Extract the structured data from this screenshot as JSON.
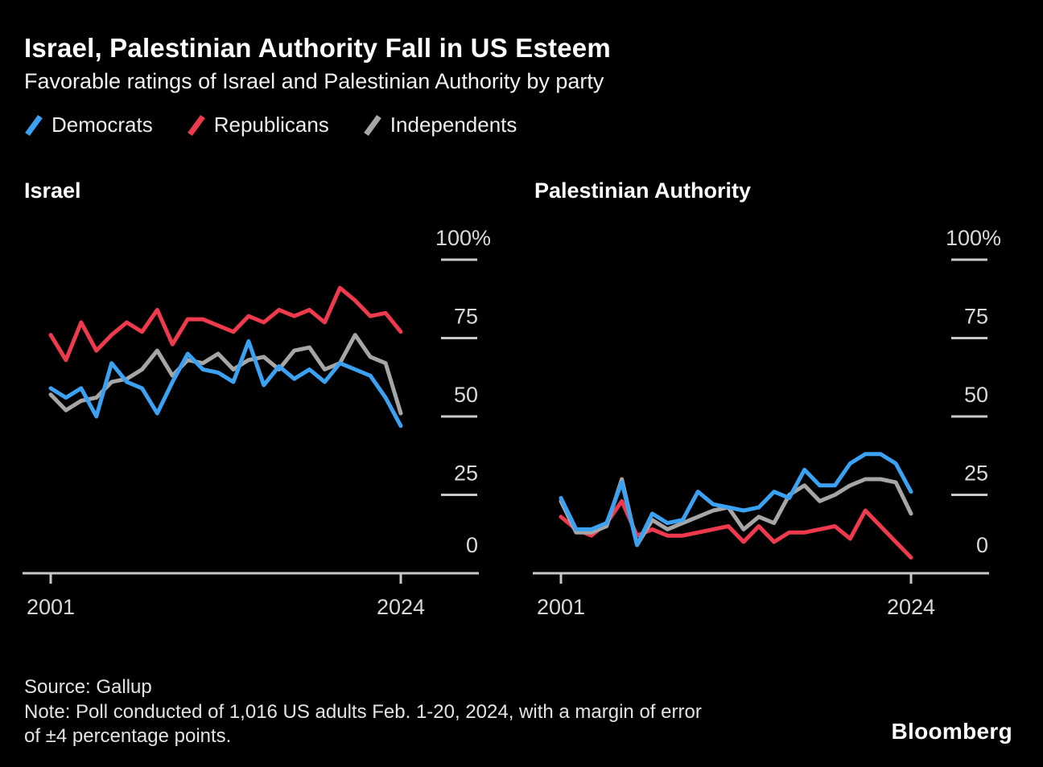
{
  "header": {
    "title": "Israel, Palestinian Authority Fall in US Esteem",
    "subtitle": "Favorable ratings of Israel and Palestinian Authority by party"
  },
  "legend": [
    {
      "label": "Democrats",
      "color": "#3BA1F2"
    },
    {
      "label": "Republicans",
      "color": "#EE3A4C"
    },
    {
      "label": "Independents",
      "color": "#A6A6A6"
    }
  ],
  "chart_data": [
    {
      "type": "line",
      "title": "Israel",
      "x": [
        2001,
        2002,
        2003,
        2004,
        2005,
        2006,
        2007,
        2008,
        2009,
        2010,
        2011,
        2012,
        2013,
        2014,
        2015,
        2016,
        2017,
        2018,
        2019,
        2020,
        2021,
        2022,
        2023,
        2024
      ],
      "series": [
        {
          "name": "Democrats",
          "color": "#3BA1F2",
          "values": [
            59,
            56,
            59,
            50,
            67,
            61,
            59,
            51,
            61,
            70,
            65,
            64,
            61,
            74,
            60,
            66,
            62,
            65,
            61,
            67,
            65,
            63,
            56,
            47
          ]
        },
        {
          "name": "Republicans",
          "color": "#EE3A4C",
          "values": [
            76,
            68,
            80,
            71,
            76,
            80,
            77,
            84,
            73,
            81,
            81,
            79,
            77,
            82,
            80,
            84,
            82,
            84,
            80,
            91,
            87,
            82,
            83,
            77
          ]
        },
        {
          "name": "Independents",
          "color": "#A6A6A6",
          "values": [
            57,
            52,
            55,
            56,
            61,
            62,
            65,
            71,
            63,
            68,
            67,
            70,
            65,
            68,
            69,
            65,
            71,
            72,
            65,
            67,
            76,
            69,
            67,
            51
          ]
        }
      ],
      "ylim": [
        0,
        100
      ],
      "yticks": [
        {
          "value": 100,
          "label": "100%"
        },
        {
          "value": 75,
          "label": "75"
        },
        {
          "value": 50,
          "label": "50"
        },
        {
          "value": 25,
          "label": "25"
        },
        {
          "value": 0,
          "label": "0"
        }
      ],
      "xticks": [
        {
          "value": 2001,
          "label": "2001"
        },
        {
          "value": 2024,
          "label": "2024"
        }
      ],
      "grid": false,
      "legend_position": "top"
    },
    {
      "type": "line",
      "title": "Palestinian Authority",
      "x": [
        2001,
        2002,
        2003,
        2004,
        2005,
        2006,
        2007,
        2008,
        2009,
        2010,
        2011,
        2012,
        2013,
        2014,
        2015,
        2016,
        2017,
        2018,
        2019,
        2020,
        2021,
        2022,
        2023,
        2024
      ],
      "series": [
        {
          "name": "Democrats",
          "color": "#3BA1F2",
          "values": [
            24,
            14,
            14,
            16,
            29,
            9,
            19,
            16,
            17,
            26,
            22,
            21,
            20,
            21,
            26,
            24,
            33,
            28,
            28,
            35,
            38,
            38,
            35,
            26
          ]
        },
        {
          "name": "Republicans",
          "color": "#EE3A4C",
          "values": [
            18,
            14,
            12,
            16,
            23,
            12,
            14,
            12,
            12,
            13,
            14,
            15,
            10,
            15,
            10,
            13,
            13,
            14,
            15,
            11,
            20,
            15,
            10,
            5
          ]
        },
        {
          "name": "Independents",
          "color": "#A6A6A6",
          "values": [
            23,
            13,
            13,
            15,
            30,
            9,
            17,
            14,
            16,
            18,
            20,
            21,
            14,
            18,
            16,
            25,
            28,
            23,
            25,
            28,
            30,
            30,
            29,
            19
          ]
        }
      ],
      "ylim": [
        0,
        100
      ],
      "yticks": [
        {
          "value": 100,
          "label": "100%"
        },
        {
          "value": 75,
          "label": "75"
        },
        {
          "value": 50,
          "label": "50"
        },
        {
          "value": 25,
          "label": "25"
        },
        {
          "value": 0,
          "label": "0"
        }
      ],
      "xticks": [
        {
          "value": 2001,
          "label": "2001"
        },
        {
          "value": 2024,
          "label": "2024"
        }
      ],
      "grid": false,
      "legend_position": "top"
    }
  ],
  "footer": {
    "source": "Source: Gallup",
    "note_lines": [
      "Note: Poll conducted of 1,016 US adults Feb. 1-20, 2024, with a margin of error",
      "of ±4 percentage points."
    ],
    "brand": "Bloomberg"
  }
}
